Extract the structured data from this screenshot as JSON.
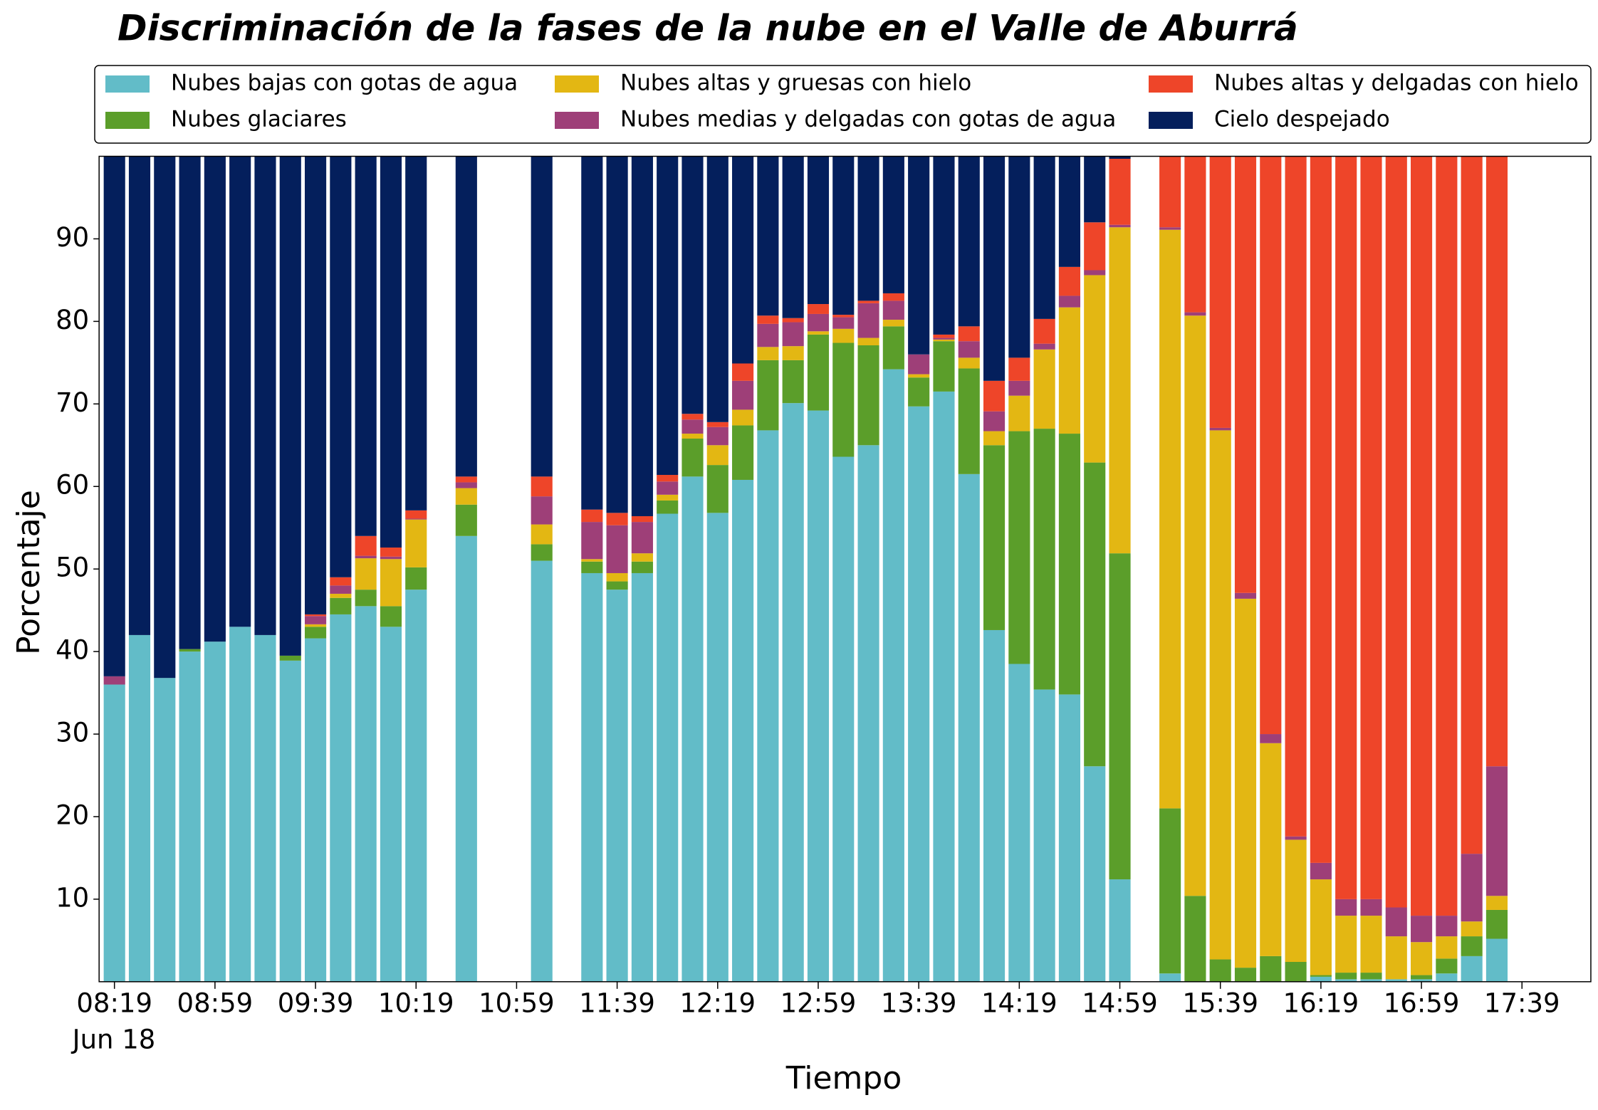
{
  "chart_data": {
    "type": "stacked_bar",
    "title": "Discriminación de la fases de la nube en el Valle de Aburrá",
    "xlabel": "Tiempo",
    "xlabel_date": "Jun 18",
    "ylabel": "Porcentaje",
    "ylim": [
      0,
      100
    ],
    "yticks": [
      10,
      20,
      30,
      40,
      50,
      60,
      70,
      80,
      90
    ],
    "legend": "top",
    "categories": [
      "08:19",
      null,
      null,
      null,
      "08:59",
      null,
      null,
      null,
      "09:39",
      null,
      null,
      null,
      "10:19",
      null,
      null,
      null,
      "10:59",
      null,
      null,
      null,
      "11:39",
      null,
      null,
      null,
      "12:19",
      null,
      null,
      null,
      "12:59",
      null,
      null,
      null,
      "13:39",
      null,
      null,
      null,
      "14:19",
      null,
      null,
      null,
      "14:59",
      null,
      null,
      null,
      "15:39",
      null,
      null,
      null,
      "16:19",
      null,
      null,
      null,
      "16:59",
      null,
      null,
      null,
      "17:39"
    ],
    "series": [
      {
        "name": "Nubes bajas con gotas de agua",
        "color": "#62bcc8",
        "values": [
          36,
          42,
          36.8,
          40,
          41.2,
          43,
          42,
          38.9,
          41.6,
          44.5,
          45.5,
          43,
          47.5,
          null,
          54,
          null,
          null,
          51,
          null,
          49.5,
          47.5,
          49.5,
          56.7,
          61.2,
          56.8,
          60.8,
          66.8,
          70.1,
          69.2,
          63.6,
          65,
          74.2,
          69.7,
          71.5,
          61.5,
          42.6,
          38.5,
          35.4,
          34.8,
          26.1,
          12.4,
          null,
          1,
          0,
          0,
          0,
          0,
          0,
          0.6,
          0.3,
          0.3,
          0.3,
          0.3,
          1,
          3.1,
          5.2,
          null
        ]
      },
      {
        "name": "Nubes glaciares",
        "color": "#5b9e2a",
        "values": [
          0,
          0,
          0,
          0.3,
          0,
          0,
          0,
          0.6,
          1.4,
          2,
          2,
          2.5,
          2.7,
          null,
          3.8,
          null,
          null,
          2,
          null,
          1.4,
          1,
          1.4,
          1.6,
          4.6,
          5.8,
          6.6,
          8.5,
          5.2,
          9.2,
          13.8,
          12.1,
          5.2,
          3.5,
          6.1,
          12.8,
          22.4,
          28.2,
          31.6,
          31.6,
          36.8,
          39.5,
          null,
          20,
          10.4,
          2.7,
          1.7,
          3.1,
          2.4,
          0.2,
          0.8,
          0.8,
          0,
          0.5,
          1.8,
          2.4,
          3.5,
          null
        ]
      },
      {
        "name": "Nubes altas y gruesas con hielo",
        "color": "#e3b713",
        "values": [
          0,
          0,
          0,
          0,
          0,
          0,
          0,
          0,
          0.3,
          0.5,
          3.8,
          5.7,
          5.8,
          null,
          2,
          null,
          null,
          2.4,
          null,
          0.3,
          1,
          1,
          0.7,
          0.6,
          2.4,
          1.9,
          1.6,
          1.7,
          0.4,
          1.7,
          0.9,
          0.8,
          0.4,
          0.2,
          1.3,
          1.7,
          4.3,
          9.6,
          15.3,
          22.7,
          39.5,
          null,
          70.1,
          70.3,
          64.1,
          44.7,
          25.8,
          14.8,
          11.6,
          6.9,
          6.9,
          5.2,
          4,
          2.7,
          1.8,
          1.7,
          null
        ]
      },
      {
        "name": "Nubes medias y delgadas con gotas de agua",
        "color": "#9e3f78",
        "values": [
          1,
          0,
          0,
          0,
          0,
          0,
          0,
          0,
          1,
          1,
          0.3,
          0.3,
          0.1,
          null,
          0.7,
          null,
          null,
          3.4,
          null,
          4.5,
          5.8,
          3.8,
          1.6,
          1.7,
          2.2,
          3.5,
          2.8,
          2.9,
          2.1,
          1.4,
          4.2,
          2.3,
          2.4,
          0.2,
          2,
          2.4,
          1.8,
          0.7,
          1.4,
          0.6,
          0.3,
          null,
          0.3,
          0.4,
          0.3,
          0.7,
          1.1,
          0.4,
          2,
          2,
          2,
          3.5,
          3.2,
          2.5,
          8.2,
          15.7,
          null
        ]
      },
      {
        "name": "Nubes altas y delgadas con hielo",
        "color": "#ee4529",
        "values": [
          0,
          0,
          0,
          0,
          0,
          0,
          0,
          0,
          0.2,
          1,
          2.4,
          1.1,
          1,
          null,
          0.7,
          null,
          null,
          2.4,
          null,
          1.5,
          1.5,
          0.7,
          0.8,
          0.7,
          0.6,
          2.1,
          1,
          0.5,
          1.2,
          0.3,
          0.3,
          0.9,
          0,
          0.4,
          1.8,
          3.7,
          2.8,
          3,
          3.5,
          5.8,
          8,
          null,
          8.6,
          18.9,
          32.9,
          52.9,
          70,
          82.4,
          85.6,
          90,
          90,
          91,
          92,
          92,
          84.5,
          73.9,
          null
        ]
      },
      {
        "name": "Cielo despejado",
        "color": "#041f5c",
        "values": [
          63,
          58,
          63.2,
          59.7,
          58.8,
          57,
          58,
          60.5,
          55.5,
          51,
          46,
          47.4,
          42.9,
          null,
          38.8,
          null,
          null,
          38.8,
          null,
          42.8,
          43.2,
          43.6,
          38.6,
          31.2,
          32.2,
          25.1,
          19.3,
          19.6,
          17.9,
          19.2,
          17.5,
          16.6,
          24,
          21.6,
          20.6,
          27.2,
          24.4,
          19.7,
          13.4,
          8,
          0.3,
          null,
          0,
          0,
          0,
          0,
          0,
          0,
          0,
          0,
          0,
          0,
          0,
          0,
          0,
          0,
          null
        ]
      }
    ]
  }
}
